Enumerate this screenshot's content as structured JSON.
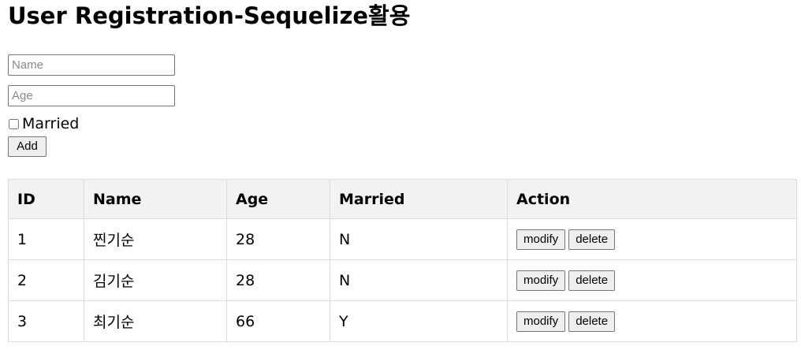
{
  "page": {
    "title": "User Registration-Sequelize활용"
  },
  "form": {
    "name_placeholder": "Name",
    "name_value": "",
    "age_placeholder": "Age",
    "age_value": "",
    "married_label": "Married",
    "married_checked": false,
    "add_label": "Add"
  },
  "table": {
    "headers": [
      "ID",
      "Name",
      "Age",
      "Married",
      "Action"
    ],
    "rows": [
      {
        "id": "1",
        "name": "찐기순",
        "age": "28",
        "married": "N",
        "modify_label": "modify",
        "delete_label": "delete"
      },
      {
        "id": "2",
        "name": "김기순",
        "age": "28",
        "married": "N",
        "modify_label": "modify",
        "delete_label": "delete"
      },
      {
        "id": "3",
        "name": "최기순",
        "age": "66",
        "married": "Y",
        "modify_label": "modify",
        "delete_label": "delete"
      }
    ]
  }
}
